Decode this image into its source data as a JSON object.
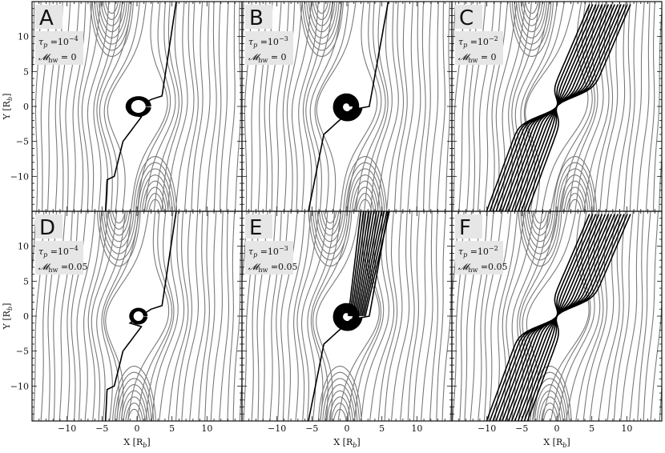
{
  "figure": {
    "x_axis_label": "X [R",
    "x_axis_label_sub": "b",
    "x_axis_label_end": "]",
    "y_axis_label": "Y [R",
    "y_axis_label_sub": "b",
    "y_axis_label_end": "]",
    "x_ticks": [
      "−10",
      "−5",
      "0",
      "5",
      "10"
    ],
    "y_ticks": [
      "10",
      "5",
      "0",
      "−5",
      "−10"
    ],
    "colors": {
      "background_line": "#7a7a7a",
      "accreted_line": "#000000",
      "label_box": "#e6e6e6"
    }
  },
  "panels": [
    {
      "letter": "A",
      "tau_base": "τ",
      "tau_sub": "p",
      "tau_eq": " =10",
      "tau_exp": "−4",
      "mach_base": "𝓜",
      "mach_sub": "hw",
      "mach_eq": " = 0"
    },
    {
      "letter": "B",
      "tau_base": "τ",
      "tau_sub": "p",
      "tau_eq": " =10",
      "tau_exp": "−3",
      "mach_base": "𝓜",
      "mach_sub": "hw",
      "mach_eq": " = 0"
    },
    {
      "letter": "C",
      "tau_base": "τ",
      "tau_sub": "p",
      "tau_eq": " =10",
      "tau_exp": "−2",
      "mach_base": "𝓜",
      "mach_sub": "hw",
      "mach_eq": " = 0"
    },
    {
      "letter": "D",
      "tau_base": "τ",
      "tau_sub": "p",
      "tau_eq": " =10",
      "tau_exp": "−4",
      "mach_base": "𝓜",
      "mach_sub": "hw",
      "mach_eq": " =0.05"
    },
    {
      "letter": "E",
      "tau_base": "τ",
      "tau_sub": "p",
      "tau_eq": " =10",
      "tau_exp": "−3",
      "mach_base": "𝓜",
      "mach_sub": "hw",
      "mach_eq": " =0.05"
    },
    {
      "letter": "F",
      "tau_base": "τ",
      "tau_sub": "p",
      "tau_eq": " =10",
      "tau_exp": "−2",
      "mach_base": "𝓜",
      "mach_sub": "hw",
      "mach_eq": " =0.05"
    }
  ]
}
